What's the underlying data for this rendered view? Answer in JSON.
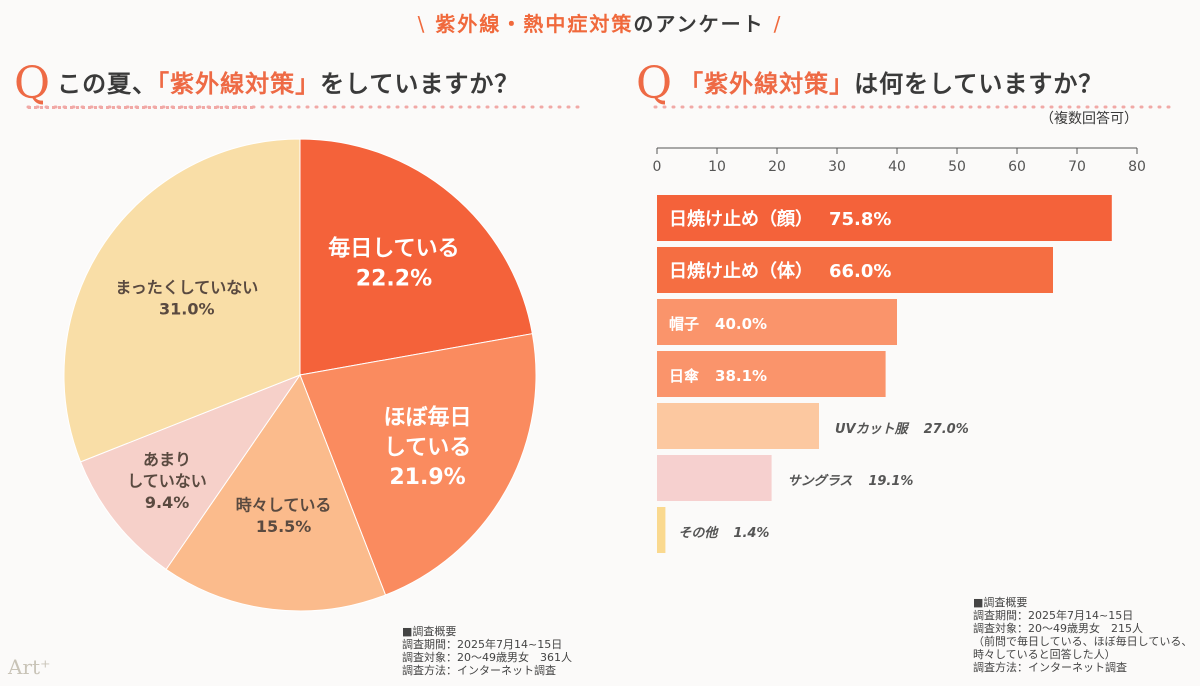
{
  "header": {
    "slash_left": "\\",
    "title_highlight": "紫外線・熱中症対策",
    "title_rest": "のアンケート",
    "slash_right": "/"
  },
  "questions": {
    "left": {
      "q": "Q",
      "pre": "この夏、",
      "highlight": "「紫外線対策」",
      "post": "をしていますか？"
    },
    "right": {
      "q": "Q",
      "highlight": "「紫外線対策」",
      "post": "は何をしていますか？",
      "note": "（複数回答可）"
    }
  },
  "chart_data": [
    {
      "type": "pie",
      "unit": "%",
      "start": "top",
      "direction": "clockwise",
      "slices": [
        {
          "label": "毎日している",
          "value": 22.2,
          "color": "#f4623a",
          "text": "#ffffff"
        },
        {
          "label": "ほぼ毎日している",
          "value": 21.9,
          "color": "#fa8b5f",
          "text": "#ffffff"
        },
        {
          "label": "時々している",
          "value": 15.5,
          "color": "#fbbb8c",
          "text": "#5a4a40"
        },
        {
          "label": "あまりしていない",
          "value": 9.4,
          "color": "#f6d0c9",
          "text": "#5a4a40"
        },
        {
          "label": "まったくしていない",
          "value": 31.0,
          "color": "#f9dea7",
          "text": "#5a4a40"
        }
      ]
    },
    {
      "type": "bar",
      "orientation": "horizontal",
      "unit": "%",
      "xlim": [
        0,
        80
      ],
      "ticks": [
        0,
        10,
        20,
        30,
        40,
        50,
        60,
        70,
        80
      ],
      "categories": [
        "日焼け止め（顔）",
        "日焼け止め（体）",
        "帽子",
        "日傘",
        "UVカット服",
        "サングラス",
        "その他"
      ],
      "values": [
        75.8,
        66.0,
        40.0,
        38.1,
        27.0,
        19.1,
        1.4
      ],
      "colors": [
        "#f4623a",
        "#f56e42",
        "#fa946b",
        "#fa946b",
        "#fcc8a0",
        "#f6d0cf",
        "#fad98f"
      ],
      "label_inside": [
        true,
        true,
        true,
        true,
        false,
        false,
        false
      ]
    }
  ],
  "survey_left": [
    "■調査概要",
    "調査期間：2025年7月14~15日",
    "調査対象：20〜49歳男女　361人",
    "調査方法：インターネット調査"
  ],
  "survey_right": [
    "■調査概要",
    "調査期間：2025年7月14~15日",
    "調査対象：20〜49歳男女　215人",
    "（前問で毎日している、ほぼ毎日している、",
    "時々していると回答した人）",
    "調査方法：インターネット調査"
  ],
  "logo": "Art⁺"
}
